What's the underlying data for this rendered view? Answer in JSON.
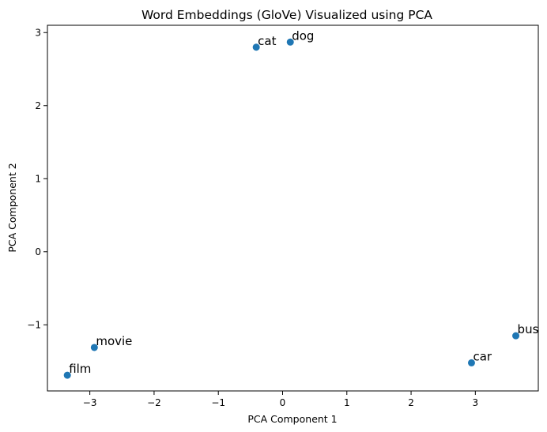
{
  "chart_data": {
    "type": "scatter",
    "title": "Word Embeddings (GloVe) Visualized using PCA",
    "xlabel": "PCA Component 1",
    "ylabel": "PCA Component 2",
    "xlim": [
      -3.66,
      3.98
    ],
    "ylim": [
      -1.905,
      3.1
    ],
    "xticks": [
      {
        "value": -3,
        "label": "−3"
      },
      {
        "value": -2,
        "label": "−2"
      },
      {
        "value": -1,
        "label": "−1"
      },
      {
        "value": 0,
        "label": "0"
      },
      {
        "value": 1,
        "label": "1"
      },
      {
        "value": 2,
        "label": "2"
      },
      {
        "value": 3,
        "label": "3"
      }
    ],
    "yticks": [
      {
        "value": -1,
        "label": "−1"
      },
      {
        "value": 0,
        "label": "0"
      },
      {
        "value": 1,
        "label": "1"
      },
      {
        "value": 2,
        "label": "2"
      },
      {
        "value": 3,
        "label": "3"
      }
    ],
    "grid": false,
    "marker_color": "#1f77b4",
    "points": [
      {
        "label": "cat",
        "x": -0.41,
        "y": 2.8
      },
      {
        "label": "dog",
        "x": 0.12,
        "y": 2.87
      },
      {
        "label": "movie",
        "x": -2.93,
        "y": -1.31
      },
      {
        "label": "film",
        "x": -3.35,
        "y": -1.69
      },
      {
        "label": "car",
        "x": 2.94,
        "y": -1.52
      },
      {
        "label": "bus",
        "x": 3.63,
        "y": -1.15
      }
    ]
  }
}
